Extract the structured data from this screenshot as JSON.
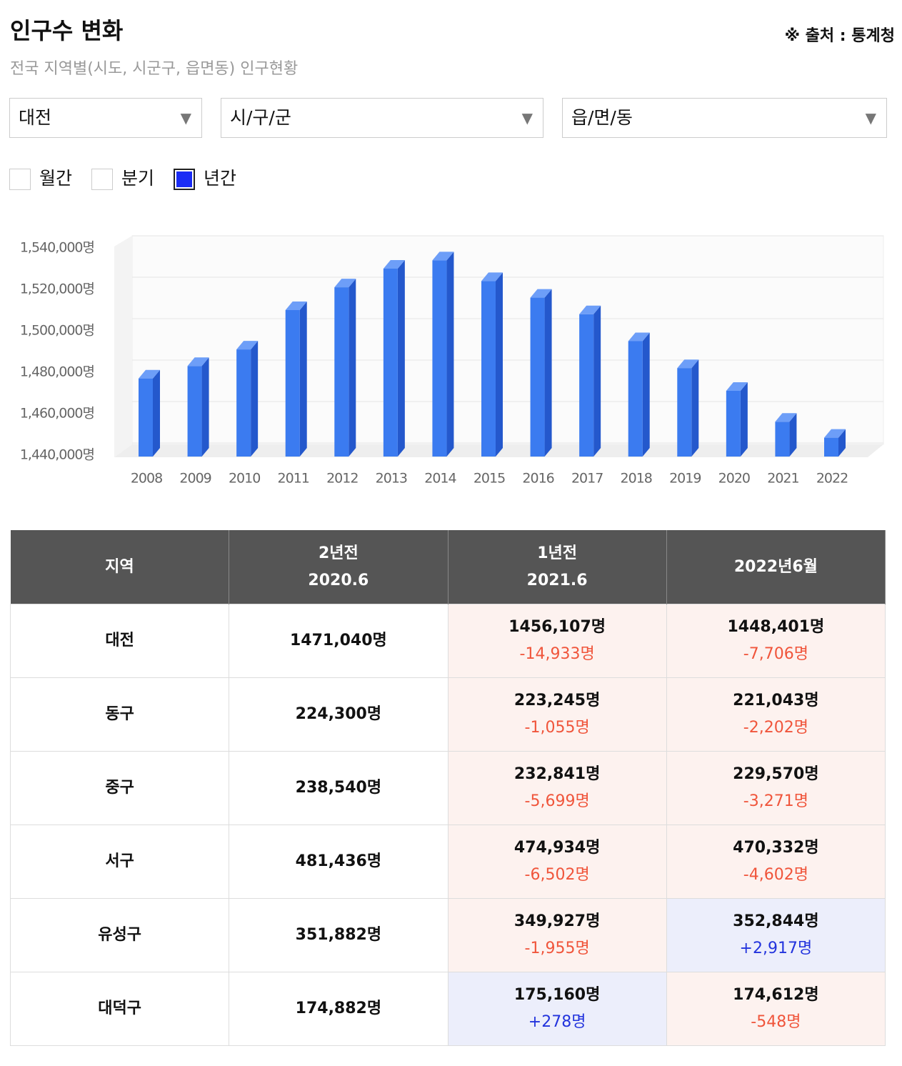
{
  "header": {
    "title": "인구수 변화",
    "source": "※ 출처 : 통계청",
    "subtitle": "전국 지역별(시도, 시군구, 읍면동) 인구현황"
  },
  "filters": {
    "selects": [
      "대전",
      "시/구/군",
      "읍/면/동"
    ],
    "periods": [
      {
        "label": "월간",
        "checked": false
      },
      {
        "label": "분기",
        "checked": false
      },
      {
        "label": "년간",
        "checked": true
      }
    ]
  },
  "chart_data": {
    "type": "bar",
    "categories": [
      "2008",
      "2009",
      "2010",
      "2011",
      "2012",
      "2013",
      "2014",
      "2015",
      "2016",
      "2017",
      "2018",
      "2019",
      "2020",
      "2021",
      "2022"
    ],
    "values": [
      1477000,
      1483000,
      1491000,
      1510000,
      1521000,
      1530000,
      1534000,
      1524000,
      1516000,
      1508000,
      1495000,
      1482000,
      1471040,
      1456107,
      1448401
    ],
    "color": "#3b7bf0",
    "ylim": [
      1440000,
      1540000
    ],
    "yticks": [
      {
        "value": 1440000,
        "label": "1,440,000명"
      },
      {
        "value": 1460000,
        "label": "1,460,000명"
      },
      {
        "value": 1480000,
        "label": "1,480,000명"
      },
      {
        "value": 1500000,
        "label": "1,500,000명"
      },
      {
        "value": 1520000,
        "label": "1,520,000명"
      },
      {
        "value": 1540000,
        "label": "1,540,000명"
      }
    ],
    "grid": true
  },
  "table": {
    "header": [
      [
        "지역"
      ],
      [
        "2년전",
        "2020.6"
      ],
      [
        "1년전",
        "2021.6"
      ],
      [
        "2022년6월"
      ]
    ],
    "rows": [
      [
        [
          "대전"
        ],
        [
          "1471,040명"
        ],
        [
          "1456,107명",
          "-14,933명"
        ],
        [
          "1448,401명",
          "-7,706명"
        ]
      ],
      [
        [
          "동구"
        ],
        [
          "224,300명"
        ],
        [
          "223,245명",
          "-1,055명"
        ],
        [
          "221,043명",
          "-2,202명"
        ]
      ],
      [
        [
          "중구"
        ],
        [
          "238,540명"
        ],
        [
          "232,841명",
          "-5,699명"
        ],
        [
          "229,570명",
          "-3,271명"
        ]
      ],
      [
        [
          "서구"
        ],
        [
          "481,436명"
        ],
        [
          "474,934명",
          "-6,502명"
        ],
        [
          "470,332명",
          "-4,602명"
        ]
      ],
      [
        [
          "유성구"
        ],
        [
          "351,882명"
        ],
        [
          "349,927명",
          "-1,955명"
        ],
        [
          "352,844명",
          "+2,917명"
        ]
      ],
      [
        [
          "대덕구"
        ],
        [
          "174,882명"
        ],
        [
          "175,160명",
          "+278명"
        ],
        [
          "174,612명",
          "-548명"
        ]
      ]
    ]
  }
}
